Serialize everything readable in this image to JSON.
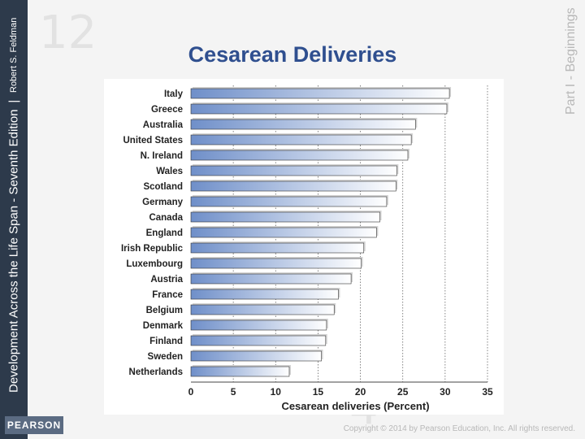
{
  "slide": {
    "title": "Cesarean Deliveries",
    "sidebar_book": "Development Across the Life Span - Seventh Edition",
    "sidebar_author": "Robert S. Feldman",
    "part_label": "Part I - Beginnings",
    "publisher": "PEARSON",
    "copyright": "Copyright © 2014 by Pearson Education, Inc. All rights reserved.",
    "colors": {
      "sidebar": "#2d3a4b",
      "title": "#2f4f8f",
      "bar_dark": "#6f8fc9",
      "bar_light": "#ffffff"
    }
  },
  "chart_data": {
    "type": "bar",
    "orientation": "horizontal",
    "categories": [
      "Italy",
      "Greece",
      "Australia",
      "United States",
      "N. Ireland",
      "Wales",
      "Scotland",
      "Germany",
      "Canada",
      "England",
      "Irish Republic",
      "Luxembourg",
      "Austria",
      "France",
      "Belgium",
      "Denmark",
      "Finland",
      "Sweden",
      "Netherlands"
    ],
    "values": [
      30.5,
      30.2,
      26.5,
      26.0,
      25.6,
      24.3,
      24.2,
      23.1,
      22.3,
      21.9,
      20.4,
      20.1,
      18.9,
      17.4,
      16.9,
      16.0,
      15.9,
      15.4,
      11.6
    ],
    "title": "",
    "xlabel": "Cesarean deliveries (Percent)",
    "ylabel": "",
    "xlim": [
      0,
      35
    ],
    "xticks": [
      0,
      5,
      10,
      15,
      20,
      25,
      30,
      35
    ],
    "grid": "vertical dotted"
  }
}
